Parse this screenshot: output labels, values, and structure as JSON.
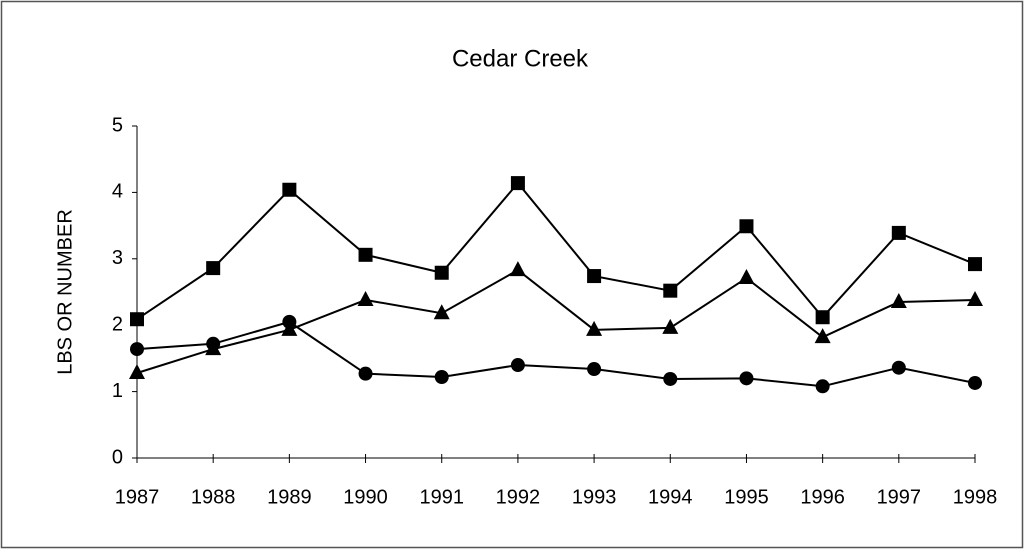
{
  "chart_data": {
    "type": "line",
    "title": "Cedar Creek",
    "y_label": "LBS OR NUMBER",
    "categories": [
      "1987",
      "1988",
      "1989",
      "1990",
      "1991",
      "1992",
      "1993",
      "1994",
      "1995",
      "1996",
      "1997",
      "1998"
    ],
    "series": [
      {
        "color": "#000000",
        "marker": "square",
        "values": [
          2.09,
          2.86,
          4.04,
          3.06,
          2.79,
          4.14,
          2.74,
          2.52,
          3.49,
          2.12,
          3.39,
          2.92
        ]
      },
      {
        "color": "#000000",
        "marker": "triangle",
        "values": [
          1.28,
          1.64,
          1.93,
          2.38,
          2.18,
          2.83,
          1.93,
          1.96,
          2.71,
          1.82,
          2.35,
          2.38
        ]
      },
      {
        "color": "#000000",
        "marker": "circle",
        "values": [
          1.64,
          1.72,
          2.05,
          1.27,
          1.22,
          1.4,
          1.34,
          1.19,
          1.2,
          1.08,
          1.36,
          1.13
        ]
      }
    ],
    "ylim": [
      0,
      5
    ],
    "yticks": [
      0,
      1,
      2,
      3,
      4,
      5
    ],
    "grid": false
  }
}
